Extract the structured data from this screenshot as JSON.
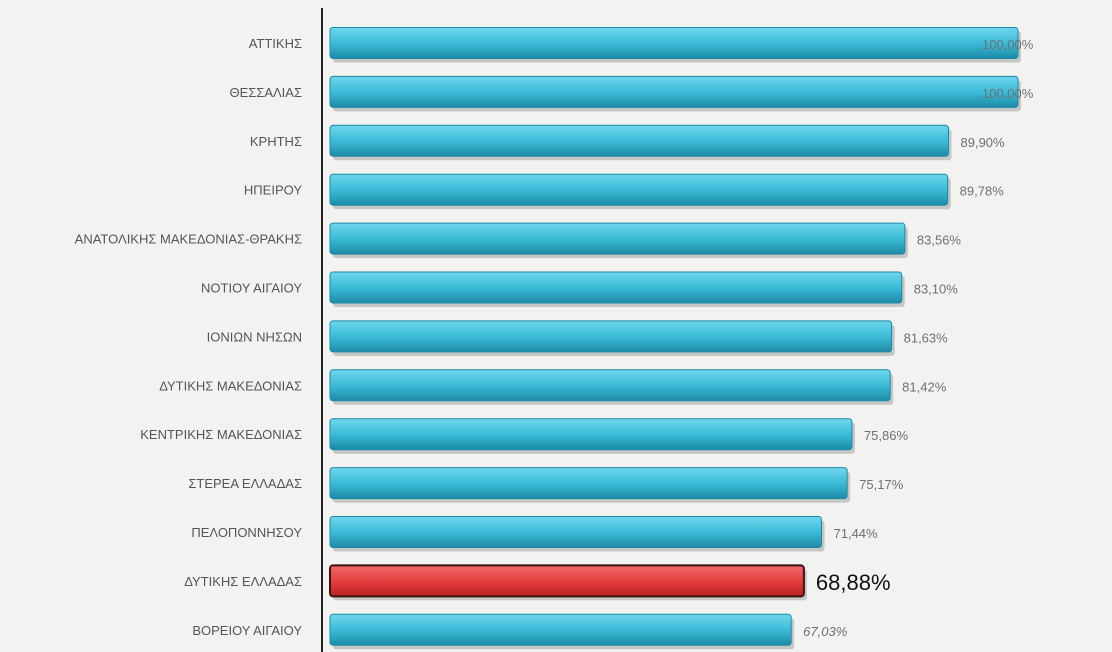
{
  "chart_data": {
    "type": "bar",
    "orientation": "horizontal",
    "categories": [
      "ΑΤΤΙΚΗΣ",
      "ΘΕΣΣΑΛΙΑΣ",
      "ΚΡΗΤΗΣ",
      "ΗΠΕΙΡΟΥ",
      "ΑΝΑΤΟΛΙΚΗΣ ΜΑΚΕΔΟΝΙΑΣ-ΘΡΑΚΗΣ",
      "ΝΟΤΙΟΥ ΑΙΓΑΙΟΥ",
      "ΙΟΝΙΩΝ ΝΗΣΩΝ",
      "ΔΥΤΙΚΗΣ ΜΑΚΕΔΟΝΙΑΣ",
      "ΚΕΝΤΡΙΚΗΣ ΜΑΚΕΔΟΝΙΑΣ",
      "ΣΤΕΡΕΑ ΕΛΛΑΔΑΣ",
      "ΠΕΛΟΠΟΝΝΗΣΟΥ",
      "ΔΥΤΙΚΗΣ ΕΛΛΑΔΑΣ",
      "ΒΟΡΕΙΟΥ ΑΙΓΑΙΟΥ"
    ],
    "values": [
      100.0,
      100.0,
      89.9,
      89.78,
      83.56,
      83.1,
      81.63,
      81.42,
      75.86,
      75.17,
      71.44,
      68.88,
      67.03
    ],
    "value_labels": [
      "100,00%",
      "100,00%",
      "89,90%",
      "89,78%",
      "83,56%",
      "83,10%",
      "81,63%",
      "81,42%",
      "75,86%",
      "75,17%",
      "71,44%",
      "68,88%",
      "67,03%"
    ],
    "highlight_index": 11,
    "xlim": [
      0,
      100
    ],
    "grid": false,
    "legend": "none",
    "colors": {
      "bar": "#3bbcd8",
      "bar_top": "#6fd6ec",
      "bar_edge": "#1d8aa6",
      "highlight": "#e33a3a",
      "highlight_edge": "#3a1414",
      "label": "#555555",
      "value": "#707070",
      "highlight_value": "#111111",
      "axis": "#222222"
    }
  }
}
